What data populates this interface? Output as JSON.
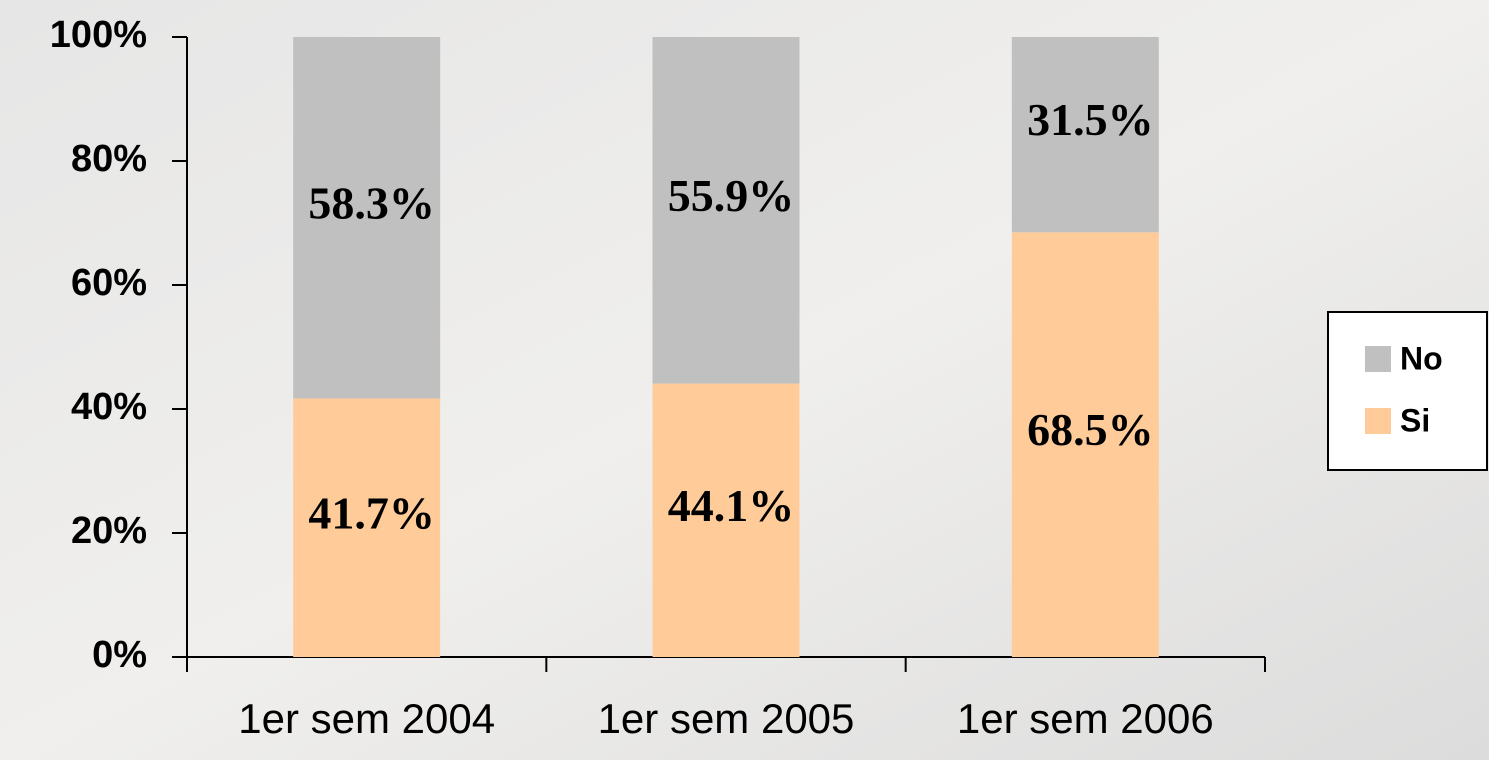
{
  "chart_data": {
    "type": "stacked-bar",
    "categories": [
      "1er sem 2004",
      "1er sem 2005",
      "1er sem 2006"
    ],
    "series": [
      {
        "name": "Si",
        "color": "#ffcc99",
        "values": [
          41.7,
          44.1,
          68.5
        ],
        "value_labels": [
          "41.7%",
          "44.1%",
          "68.5%"
        ]
      },
      {
        "name": "No",
        "color": "#c0c0c0",
        "values": [
          58.3,
          55.9,
          31.5
        ],
        "value_labels": [
          "58.3%",
          "55.9%",
          "31.5%"
        ]
      }
    ],
    "ylim": [
      0,
      100
    ],
    "yticks": [
      {
        "value": 0,
        "label": "0%"
      },
      {
        "value": 20,
        "label": "20%"
      },
      {
        "value": 40,
        "label": "40%"
      },
      {
        "value": 60,
        "label": "60%"
      },
      {
        "value": 80,
        "label": "80%"
      },
      {
        "value": 100,
        "label": "100%"
      }
    ],
    "legend": "right"
  }
}
